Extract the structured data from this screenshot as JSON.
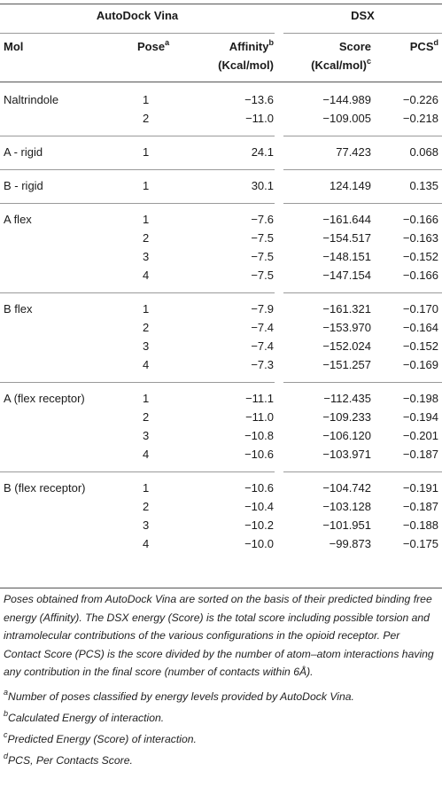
{
  "group_headers": {
    "vina": "AutoDock Vina",
    "dsx": "DSX"
  },
  "columns": {
    "mol": "Mol",
    "pose": "Pose",
    "pose_sup": "a",
    "affinity_line1": "Affinity",
    "affinity_sup": "b",
    "affinity_line2": "(Kcal/mol)",
    "score_line1": "Score",
    "score_line2": "(Kcal/mol)",
    "score_sup": "c",
    "pcs": "PCS",
    "pcs_sup": "d"
  },
  "groups": [
    {
      "mol": "Naltrindole",
      "rows": [
        {
          "pose": "1",
          "affinity": "−13.6",
          "score": "−144.989",
          "pcs": "−0.226"
        },
        {
          "pose": "2",
          "affinity": "−11.0",
          "score": "−109.005",
          "pcs": "−0.218"
        }
      ]
    },
    {
      "mol": "A - rigid",
      "rows": [
        {
          "pose": "1",
          "affinity": "24.1",
          "score": "77.423",
          "pcs": "0.068"
        }
      ]
    },
    {
      "mol": "B - rigid",
      "rows": [
        {
          "pose": "1",
          "affinity": "30.1",
          "score": "124.149",
          "pcs": "0.135"
        }
      ]
    },
    {
      "mol": "A flex",
      "rows": [
        {
          "pose": "1",
          "affinity": "−7.6",
          "score": "−161.644",
          "pcs": "−0.166"
        },
        {
          "pose": "2",
          "affinity": "−7.5",
          "score": "−154.517",
          "pcs": "−0.163"
        },
        {
          "pose": "3",
          "affinity": "−7.5",
          "score": "−148.151",
          "pcs": "−0.152"
        },
        {
          "pose": "4",
          "affinity": "−7.5",
          "score": "−147.154",
          "pcs": "−0.166"
        }
      ]
    },
    {
      "mol": "B flex",
      "rows": [
        {
          "pose": "1",
          "affinity": "−7.9",
          "score": "−161.321",
          "pcs": "−0.170"
        },
        {
          "pose": "2",
          "affinity": "−7.4",
          "score": "−153.970",
          "pcs": "−0.164"
        },
        {
          "pose": "3",
          "affinity": "−7.4",
          "score": "−152.024",
          "pcs": "−0.152"
        },
        {
          "pose": "4",
          "affinity": "−7.3",
          "score": "−151.257",
          "pcs": "−0.169"
        }
      ]
    },
    {
      "mol": "A (flex receptor)",
      "rows": [
        {
          "pose": "1",
          "affinity": "−11.1",
          "score": "−112.435",
          "pcs": "−0.198"
        },
        {
          "pose": "2",
          "affinity": "−11.0",
          "score": "−109.233",
          "pcs": "−0.194"
        },
        {
          "pose": "3",
          "affinity": "−10.8",
          "score": "−106.120",
          "pcs": "−0.201"
        },
        {
          "pose": "4",
          "affinity": "−10.6",
          "score": "−103.971",
          "pcs": "−0.187"
        }
      ]
    },
    {
      "mol": "B (flex receptor)",
      "rows": [
        {
          "pose": "1",
          "affinity": "−10.6",
          "score": "−104.742",
          "pcs": "−0.191"
        },
        {
          "pose": "2",
          "affinity": "−10.4",
          "score": "−103.128",
          "pcs": "−0.187"
        },
        {
          "pose": "3",
          "affinity": "−10.2",
          "score": "−101.951",
          "pcs": "−0.188"
        },
        {
          "pose": "4",
          "affinity": "−10.0",
          "score": "−99.873",
          "pcs": "−0.175"
        }
      ]
    }
  ],
  "footnotes": {
    "caption": "Poses obtained from AutoDock Vina are sorted on the basis of their predicted binding free energy (Affinity). The DSX energy (Score) is the total score including possible torsion and intramolecular contributions of the various configurations in the opioid receptor. Per Contact Score (PCS) is the score divided by the number of atom–atom interactions having any contribution in the final score (number of contacts within 6Å).",
    "notes": [
      {
        "mark": "a",
        "text": "Number of poses classified by energy levels provided by AutoDock Vina."
      },
      {
        "mark": "b",
        "text": "Calculated Energy of interaction."
      },
      {
        "mark": "c",
        "text": "Predicted Energy (Score) of interaction."
      },
      {
        "mark": "d",
        "text": "PCS, Per Contacts Score."
      }
    ]
  }
}
